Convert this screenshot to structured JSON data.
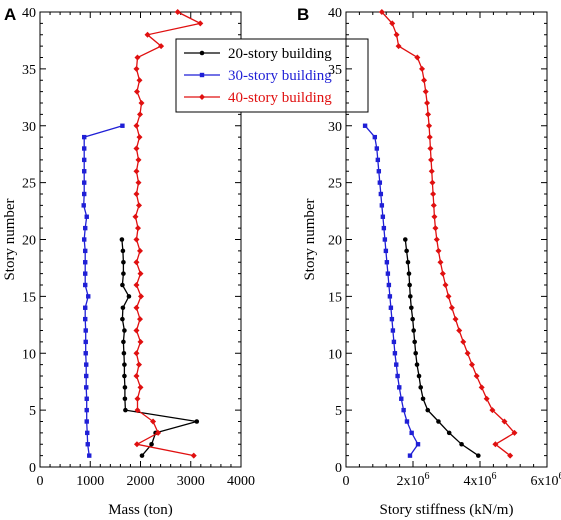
{
  "chart_data": [
    {
      "panel_label": "A",
      "type": "line",
      "xlabel": "Mass (ton)",
      "ylabel": "Story number",
      "xlim": [
        0,
        4000
      ],
      "ylim": [
        0,
        40
      ],
      "x_ticks": [
        0,
        1000,
        2000,
        3000,
        4000
      ],
      "x_tick_labels": [
        "0",
        "1000",
        "2000",
        "3000",
        "4000"
      ],
      "y_ticks": [
        0,
        5,
        10,
        15,
        20,
        25,
        30,
        35,
        40
      ],
      "y_tick_labels": [
        "0",
        "5",
        "10",
        "15",
        "20",
        "25",
        "30",
        "35",
        "40"
      ],
      "legend": {
        "placement": "top-right"
      },
      "series": [
        {
          "name": "20-story building",
          "color": "#000000",
          "marker": "circle",
          "y": [
            1,
            2,
            3,
            4,
            5,
            6,
            7,
            8,
            9,
            10,
            11,
            12,
            13,
            14,
            15,
            16,
            17,
            18,
            19,
            20
          ],
          "x": [
            2030,
            2220,
            2300,
            3120,
            1700,
            1690,
            1690,
            1680,
            1680,
            1670,
            1660,
            1680,
            1640,
            1650,
            1770,
            1640,
            1660,
            1660,
            1650,
            1630
          ]
        },
        {
          "name": "30-story building",
          "color": "#1f1fd6",
          "marker": "square",
          "y": [
            1,
            2,
            3,
            4,
            5,
            6,
            7,
            8,
            9,
            10,
            11,
            12,
            13,
            14,
            15,
            16,
            17,
            18,
            19,
            20,
            21,
            22,
            23,
            24,
            25,
            26,
            27,
            28,
            29,
            30
          ],
          "x": [
            980,
            950,
            940,
            930,
            930,
            930,
            920,
            920,
            920,
            910,
            910,
            910,
            900,
            900,
            960,
            900,
            900,
            900,
            900,
            880,
            900,
            930,
            870,
            880,
            880,
            880,
            880,
            880,
            880,
            1640
          ]
        },
        {
          "name": "40-story building",
          "color": "#e01010",
          "marker": "diamond",
          "y": [
            1,
            2,
            3,
            4,
            5,
            6,
            7,
            8,
            9,
            10,
            11,
            12,
            13,
            14,
            15,
            16,
            17,
            18,
            19,
            20,
            21,
            22,
            23,
            24,
            25,
            26,
            27,
            28,
            29,
            30,
            31,
            32,
            33,
            34,
            35,
            36,
            37,
            38,
            39,
            40
          ],
          "x": [
            3060,
            1930,
            2350,
            2250,
            1940,
            1940,
            2000,
            1920,
            1970,
            1920,
            2000,
            1920,
            1990,
            1920,
            2010,
            1920,
            2000,
            1920,
            1990,
            1920,
            1950,
            1900,
            1970,
            1920,
            1960,
            1920,
            1960,
            1920,
            1980,
            1920,
            1990,
            2020,
            1930,
            1980,
            1920,
            1940,
            2410,
            2140,
            3190,
            2740
          ]
        }
      ]
    },
    {
      "panel_label": "B",
      "type": "line",
      "xlabel": "Story stiffness (kN/m)",
      "ylabel": "Story number",
      "xlim": [
        0,
        6000000
      ],
      "ylim": [
        0,
        40
      ],
      "x_ticks": [
        0,
        2000000,
        4000000,
        6000000
      ],
      "x_tick_labels": [
        "0",
        "2x10",
        "4x10",
        "6x10"
      ],
      "x_tick_exponent": "6",
      "y_ticks": [
        0,
        5,
        10,
        15,
        20,
        25,
        30,
        35,
        40
      ],
      "y_tick_labels": [
        "0",
        "5",
        "10",
        "15",
        "20",
        "25",
        "30",
        "35",
        "40"
      ],
      "series": [
        {
          "name": "20-story building",
          "color": "#000000",
          "marker": "circle",
          "y": [
            1,
            2,
            3,
            4,
            5,
            6,
            7,
            8,
            9,
            10,
            11,
            12,
            13,
            14,
            15,
            16,
            17,
            18,
            19,
            20
          ],
          "x": [
            3950000,
            3450000,
            3080000,
            2760000,
            2440000,
            2300000,
            2230000,
            2180000,
            2120000,
            2080000,
            2050000,
            2020000,
            1990000,
            1950000,
            1920000,
            1900000,
            1880000,
            1850000,
            1810000,
            1770000
          ]
        },
        {
          "name": "30-story building",
          "color": "#1f1fd6",
          "marker": "square",
          "y": [
            1,
            2,
            3,
            4,
            5,
            6,
            7,
            8,
            9,
            10,
            11,
            12,
            13,
            14,
            15,
            16,
            17,
            18,
            19,
            20,
            21,
            22,
            23,
            24,
            25,
            26,
            27,
            28,
            29,
            30
          ],
          "x": [
            1910000,
            2150000,
            1960000,
            1820000,
            1720000,
            1650000,
            1590000,
            1540000,
            1500000,
            1460000,
            1430000,
            1400000,
            1370000,
            1340000,
            1310000,
            1280000,
            1250000,
            1220000,
            1190000,
            1160000,
            1130000,
            1100000,
            1070000,
            1040000,
            1010000,
            980000,
            950000,
            920000,
            860000,
            570000
          ]
        },
        {
          "name": "40-story building",
          "color": "#e01010",
          "marker": "diamond",
          "y": [
            1,
            2,
            3,
            4,
            5,
            6,
            7,
            8,
            9,
            10,
            11,
            12,
            13,
            14,
            15,
            16,
            17,
            18,
            19,
            20,
            21,
            22,
            23,
            24,
            25,
            26,
            27,
            28,
            29,
            30,
            31,
            32,
            33,
            34,
            35,
            36,
            37,
            38,
            39,
            40
          ],
          "x": [
            4900000,
            4460000,
            5030000,
            4730000,
            4370000,
            4200000,
            4050000,
            3900000,
            3760000,
            3630000,
            3500000,
            3380000,
            3270000,
            3160000,
            3060000,
            2970000,
            2890000,
            2820000,
            2760000,
            2710000,
            2670000,
            2640000,
            2620000,
            2600000,
            2580000,
            2560000,
            2540000,
            2520000,
            2500000,
            2480000,
            2450000,
            2420000,
            2380000,
            2330000,
            2270000,
            2130000,
            1570000,
            1510000,
            1380000,
            1070000
          ]
        }
      ]
    }
  ]
}
